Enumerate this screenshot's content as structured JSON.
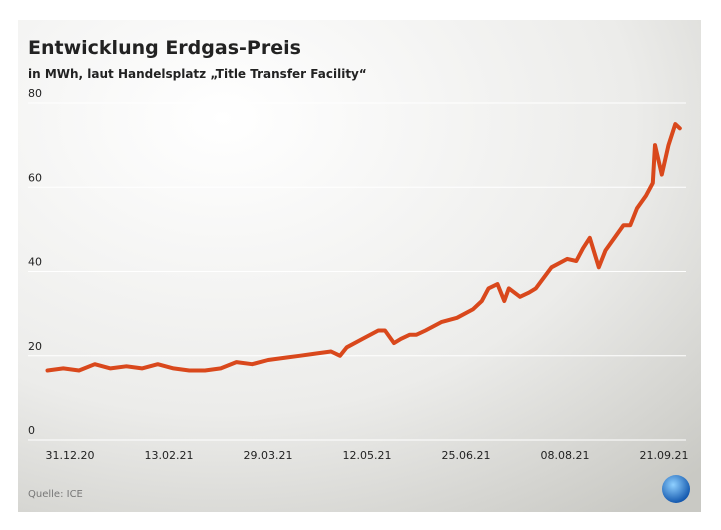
{
  "chart_data": {
    "type": "line",
    "title": "Entwicklung Erdgas-Preis",
    "subtitle": "in MWh, laut Handelsplatz „Title Transfer Facility“",
    "source": "Quelle: ICE",
    "x": [
      "21.12.20",
      "28.12.20",
      "04.01.21",
      "11.01.21",
      "18.01.21",
      "25.01.21",
      "01.02.21",
      "08.02.21",
      "15.02.21",
      "22.02.21",
      "01.03.21",
      "08.03.21",
      "15.03.21",
      "22.03.21",
      "29.03.21",
      "05.04.21",
      "12.04.21",
      "19.04.21",
      "26.04.21",
      "30.04.21",
      "03.05.21",
      "10.05.21",
      "17.05.21",
      "20.05.21",
      "24.05.21",
      "27.05.21",
      "31.05.21",
      "03.06.21",
      "07.06.21",
      "14.06.21",
      "21.06.21",
      "28.06.21",
      "02.07.21",
      "05.07.21",
      "09.07.21",
      "12.07.21",
      "14.07.21",
      "19.07.21",
      "23.07.21",
      "26.07.21",
      "02.08.21",
      "09.08.21",
      "13.08.21",
      "16.08.21",
      "19.08.21",
      "23.08.21",
      "26.08.21",
      "30.08.21",
      "03.09.21",
      "06.09.21",
      "09.09.21",
      "13.09.21",
      "16.09.21",
      "17.09.21",
      "20.09.21",
      "23.09.21",
      "26.09.21",
      "28.09.21"
    ],
    "series": [
      {
        "name": "Erdgas-Preis",
        "color": "#d9481c",
        "values": [
          16.5,
          17,
          16.5,
          18,
          17,
          17.5,
          17,
          18,
          17,
          16.5,
          16.5,
          17,
          18.5,
          18,
          19,
          19.5,
          20,
          20.5,
          21,
          20,
          22,
          24,
          26,
          26,
          23,
          24,
          25,
          25,
          26,
          28,
          29,
          31,
          33,
          36,
          37,
          33,
          36,
          34,
          35,
          36,
          41,
          43,
          42.5,
          45.5,
          48,
          41,
          45,
          48,
          51,
          51,
          55,
          58,
          61,
          70,
          63,
          70,
          75,
          74
        ]
      }
    ],
    "xticks": [
      "31.12.20",
      "13.02.21",
      "29.03.21",
      "12.05.21",
      "25.06.21",
      "08.08.21",
      "21.09.21"
    ],
    "ylim": [
      0,
      80
    ],
    "yticks": [
      0,
      20,
      40,
      60,
      80
    ],
    "grid": true
  }
}
